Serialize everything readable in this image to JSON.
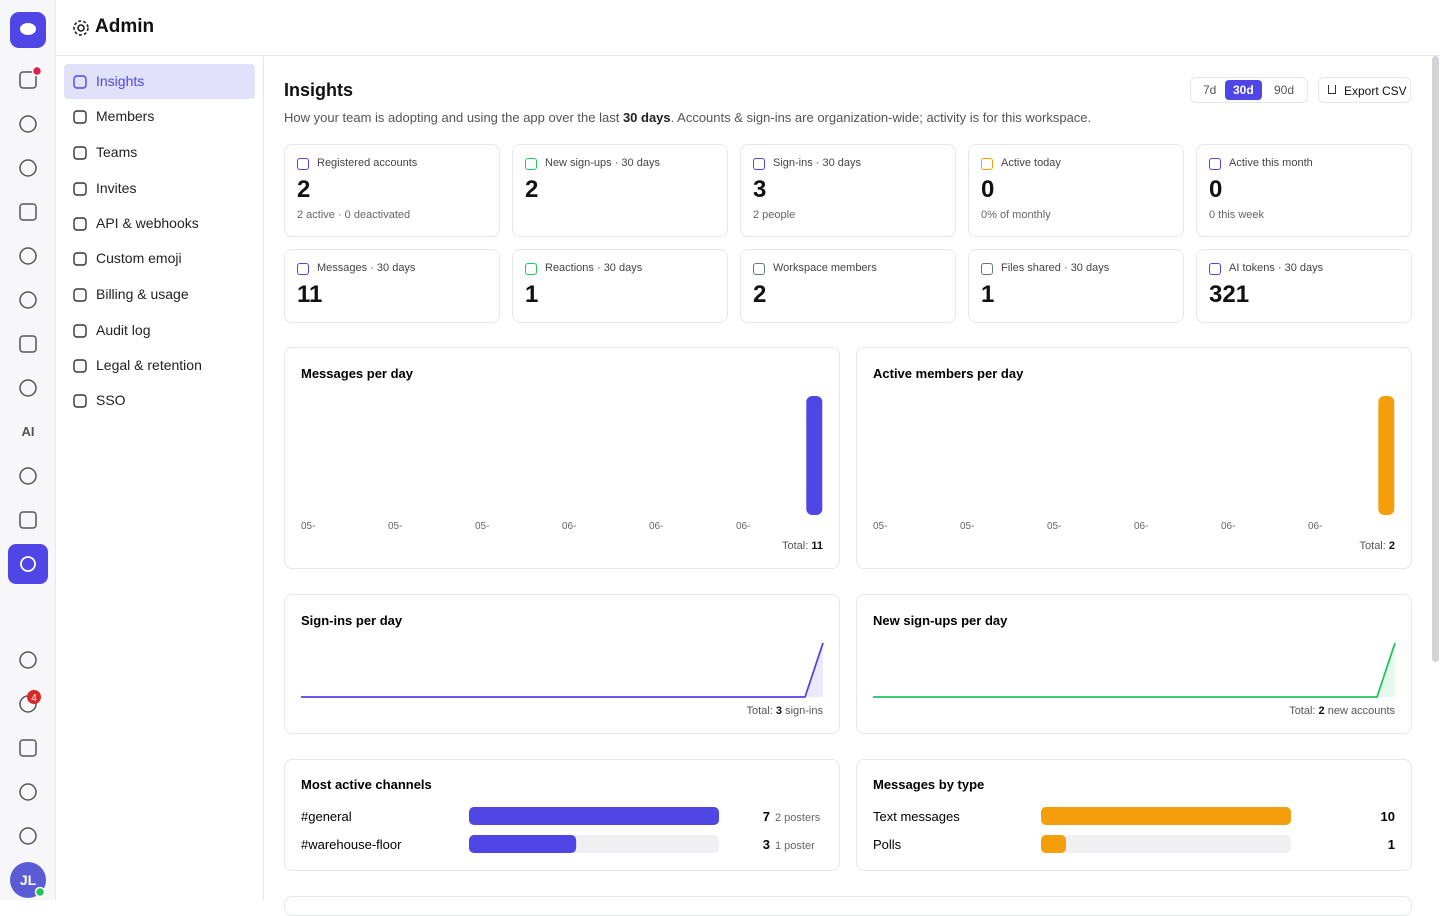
{
  "header": {
    "title": "Admin"
  },
  "rail": {
    "ai": "AI",
    "badge": "4",
    "avatar": "JL"
  },
  "nav": {
    "items": [
      "Insights",
      "Members",
      "Teams",
      "Invites",
      "API & webhooks",
      "Custom emoji",
      "Billing & usage",
      "Audit log",
      "Legal & retention",
      "SSO"
    ],
    "active": 0
  },
  "page": {
    "title": "Insights",
    "subtitle": [
      "How your team is adopting and using the app over the last ",
      "30 days",
      ". Accounts & sign-ins are organization-wide; activity is for this workspace."
    ],
    "ranges": [
      "7d",
      "30d",
      "90d"
    ],
    "active_range": 1,
    "export": "Export CSV"
  },
  "stats": [
    {
      "label": "Registered accounts",
      "value": "2",
      "note": "2 active · 0 deactivated",
      "color": "#4f46e5"
    },
    {
      "label": "New sign-ups · 30 days",
      "value": "2",
      "color": "#22c55e"
    },
    {
      "label": "Sign-ins · 30 days",
      "value": "3",
      "note": "2 people",
      "color": "#4f46e5"
    },
    {
      "label": "Active today",
      "value": "0",
      "note": "0% of monthly",
      "color": "#f59e0b"
    },
    {
      "label": "Active this month",
      "value": "0",
      "note": "0 this week",
      "color": "#4f46e5"
    },
    {
      "label": "Messages · 30 days",
      "value": "11",
      "color": "#4f46e5"
    },
    {
      "label": "Reactions · 30 days",
      "value": "1",
      "color": "#22c55e"
    },
    {
      "label": "Workspace members",
      "value": "2",
      "color": "#6b7280"
    },
    {
      "label": "Files shared · 30 days",
      "value": "1",
      "color": "#6b7280"
    },
    {
      "label": "AI tokens · 30 days",
      "value": "321",
      "color": "#4f46e5"
    }
  ],
  "charts": [
    {
      "type": "bar",
      "title": "Messages per day",
      "x_labels": [
        "05-",
        "05-",
        "05-",
        "06-",
        "06-",
        "06-"
      ],
      "color": "#4f46e5",
      "total_label": "Total:",
      "total": 11,
      "values": [
        0,
        0,
        0,
        0,
        0,
        0,
        0,
        0,
        0,
        0,
        0,
        0,
        0,
        0,
        0,
        0,
        0,
        0,
        0,
        0,
        0,
        0,
        0,
        0,
        0,
        0,
        0,
        0,
        0,
        11
      ]
    },
    {
      "type": "bar",
      "title": "Active members per day",
      "x_labels": [
        "05-",
        "05-",
        "05-",
        "06-",
        "06-",
        "06-"
      ],
      "color": "#f59e0b",
      "total_label": "Total:",
      "total": 2,
      "values": [
        0,
        0,
        0,
        0,
        0,
        0,
        0,
        0,
        0,
        0,
        0,
        0,
        0,
        0,
        0,
        0,
        0,
        0,
        0,
        0,
        0,
        0,
        0,
        0,
        0,
        0,
        0,
        0,
        0,
        2
      ]
    },
    {
      "type": "line",
      "title": "Sign-ins per day",
      "color": "#4f46e5",
      "total_label": "Total:",
      "total": 3,
      "total_unit": "sign-ins",
      "values": [
        0,
        0,
        0,
        0,
        0,
        0,
        0,
        0,
        0,
        0,
        0,
        0,
        0,
        0,
        0,
        0,
        0,
        0,
        0,
        0,
        0,
        0,
        0,
        0,
        0,
        0,
        0,
        0,
        0,
        3
      ]
    },
    {
      "type": "line",
      "title": "New sign-ups per day",
      "color": "#22c55e",
      "total_label": "Total:",
      "total": 2,
      "total_unit": "new accounts",
      "values": [
        0,
        0,
        0,
        0,
        0,
        0,
        0,
        0,
        0,
        0,
        0,
        0,
        0,
        0,
        0,
        0,
        0,
        0,
        0,
        0,
        0,
        0,
        0,
        0,
        0,
        0,
        0,
        0,
        0,
        2
      ]
    }
  ],
  "rankings": [
    {
      "title": "Most active channels",
      "color": "#4f46e5",
      "rows": [
        {
          "name": "#general",
          "value": 7,
          "note": "2 posters"
        },
        {
          "name": "#warehouse-floor",
          "value": 3,
          "note": "1 poster"
        }
      ]
    },
    {
      "title": "Messages by type",
      "color": "#f59e0b",
      "rows": [
        {
          "name": "Text messages",
          "value": 10
        },
        {
          "name": "Polls",
          "value": 1
        }
      ]
    }
  ]
}
